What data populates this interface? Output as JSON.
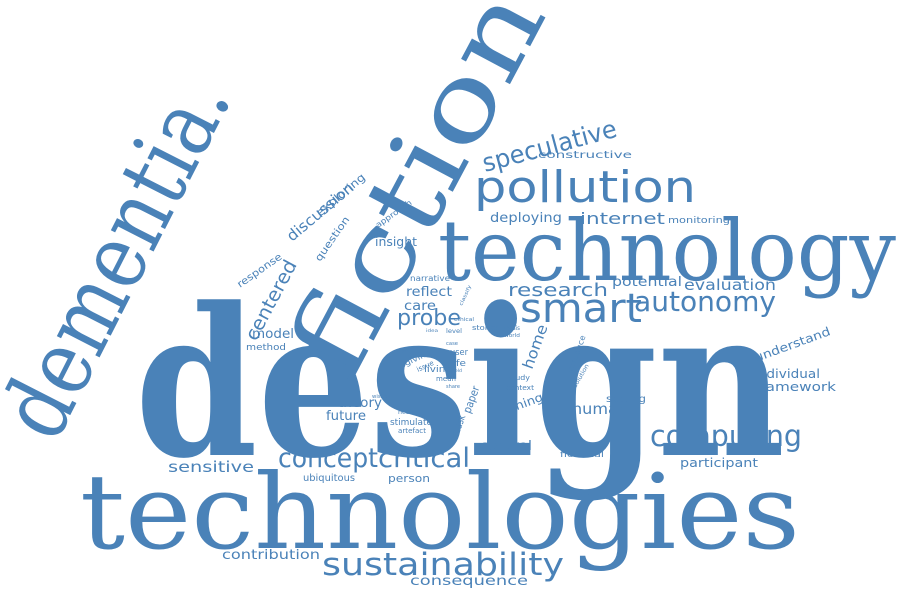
{
  "word_color": "#4a82b8",
  "background_color": "#ffffff",
  "words": {
    "design": "design",
    "technologies": "technologies",
    "technology": "technology",
    "dementia": "dementia.",
    "fiction": "fiction",
    "pollution": "pollution",
    "speculative": "speculative",
    "smart": "smart",
    "autonomy": "autonomy",
    "computing": "computing",
    "sustainability": "sustainability",
    "critical": "critical",
    "concept": "concept",
    "probe": "probe",
    "research": "research",
    "internet": "internet",
    "centered": "centered",
    "discussion": "discussion",
    "exploring": "exploring",
    "constructive": "constructive",
    "deploying": "deploying",
    "monitoring": "monitoring",
    "question": "question",
    "approach": "approach",
    "insight": "insight",
    "response": "response",
    "narrative": "narrative",
    "reflect": "reflect",
    "care": "care",
    "potential": "potential",
    "evaluation": "evaluation",
    "model": "model",
    "method": "method",
    "understand": "understand",
    "individual": "individual",
    "framework": "framework",
    "theory": "theory",
    "future": "future",
    "stimulate": "stimulate",
    "artefact": "artefact",
    "health": "health",
    "wishes": "wishes",
    "home": "home",
    "human": "human",
    "setting": "setting",
    "thing": "thing",
    "control": "control",
    "fictional": "fictional",
    "participant": "participant",
    "sensitive": "sensitive",
    "ubiquitous": "ubiquitous",
    "person": "person",
    "contribution": "contribution",
    "consequence": "consequence",
    "stories": "stories",
    "thesis": "thesis",
    "world": "world",
    "introduce": "introduce",
    "solution": "solution",
    "study": "study",
    "context": "context",
    "living": "living",
    "mean": "mean",
    "life": "life",
    "user": "user",
    "paper": "paper",
    "mask": "mask",
    "giving": "giving",
    "issue": "issue",
    "ethical": "ethical",
    "level": "level",
    "case": "case",
    "classify": "classify",
    "share": "share",
    "field": "field",
    "idea": "idea",
    "many": "many"
  }
}
